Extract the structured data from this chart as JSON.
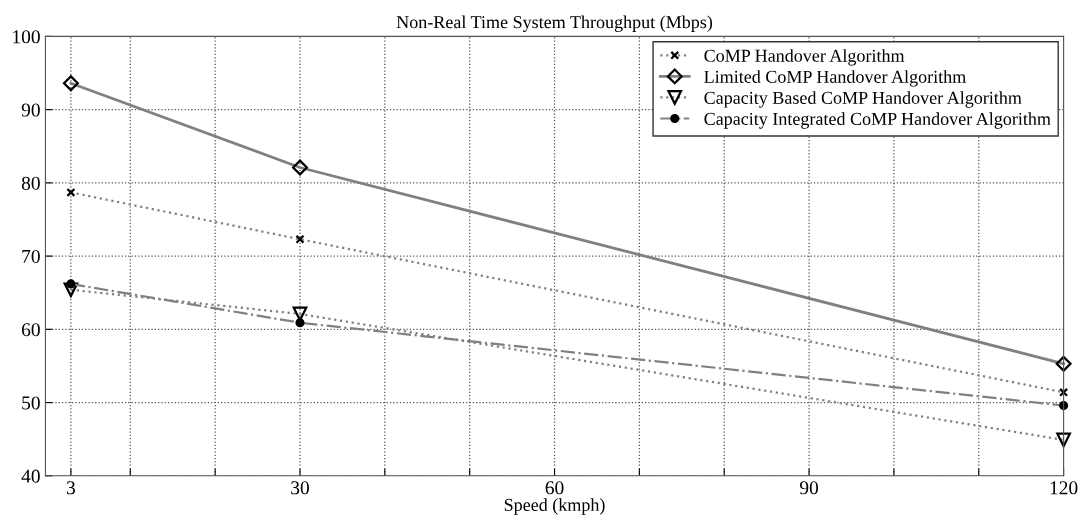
{
  "chart_data": {
    "type": "line",
    "title": "Non-Real Time System Throughput (Mbps)",
    "xlabel": "Speed (kmph)",
    "x": [
      3,
      30,
      120
    ],
    "xlim": [
      0,
      120
    ],
    "xticks": [
      3,
      {
        "value": 10,
        "label": null
      },
      {
        "value": 20,
        "label": null
      },
      30,
      {
        "value": 40,
        "label": null
      },
      {
        "value": 50,
        "label": null
      },
      60,
      {
        "value": 70,
        "label": null
      },
      {
        "value": 80,
        "label": null
      },
      90,
      {
        "value": 100,
        "label": null
      },
      {
        "value": 110,
        "label": null
      },
      120
    ],
    "ylim": [
      40,
      100
    ],
    "yticks": [
      40,
      50,
      60,
      70,
      80,
      90,
      100
    ],
    "grid": true,
    "legend": "top right",
    "series": [
      {
        "name": "CoMP Handover Algorithm",
        "color": "#808080",
        "marker": "cross",
        "line_style": "dotted",
        "values": [
          78.7,
          72.3,
          51.4
        ]
      },
      {
        "name": "Limited CoMP Handover Algorithm",
        "color": "#808080",
        "marker": "diamond",
        "line_style": "solid",
        "values": [
          93.6,
          82.1,
          55.3
        ]
      },
      {
        "name": "Capacity Based CoMP Handover Algorithm",
        "color": "#808080",
        "marker": "triangle",
        "line_style": "dotted",
        "values": [
          65.4,
          62.1,
          44.9
        ]
      },
      {
        "name": "Capacity Integrated CoMP Handover Algorithm",
        "color": "#808080",
        "marker": "circle",
        "line_style": "dashdot",
        "values": [
          66.2,
          60.9,
          49.6
        ]
      }
    ]
  }
}
